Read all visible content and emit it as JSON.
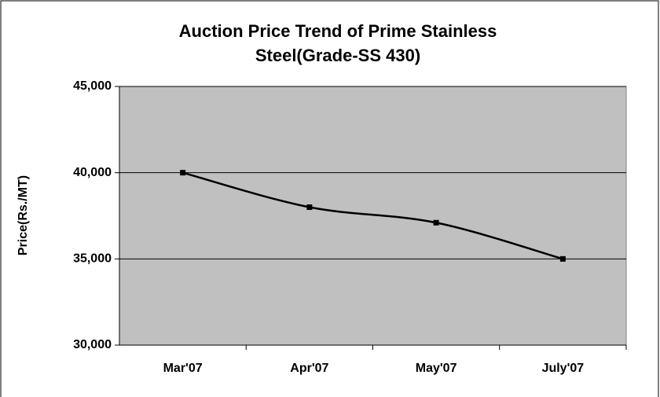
{
  "chart_data": {
    "type": "line",
    "title": [
      "Auction Price Trend of Prime Stainless",
      "Steel(Grade-SS 430)"
    ],
    "y_label": "Price(Rs./MT)",
    "categories": [
      "Mar'07",
      "Apr'07",
      "May'07",
      "July'07"
    ],
    "series": [
      {
        "name": "Price",
        "color": "#000000",
        "values": [
          40000,
          38000,
          37100,
          35000
        ]
      }
    ],
    "ylim": [
      30000,
      45000
    ],
    "yticks": [
      {
        "value": 30000,
        "label": "30,000"
      },
      {
        "value": 35000,
        "label": "35,000"
      },
      {
        "value": 40000,
        "label": "40,000"
      },
      {
        "value": 45000,
        "label": "45,000"
      }
    ],
    "grid": true,
    "smooth": true,
    "plot_background": "#c0c0c0"
  }
}
